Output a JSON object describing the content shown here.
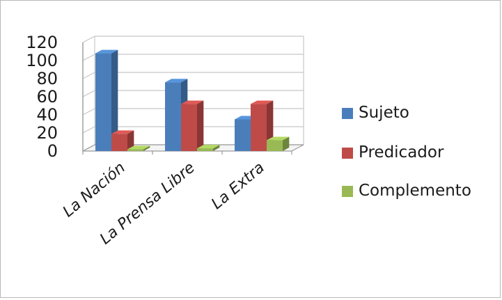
{
  "chart_data": {
    "type": "bar",
    "title": "",
    "xlabel": "",
    "ylabel": "",
    "categories": [
      "La Nación",
      "La Prensa Libre",
      "La Extra"
    ],
    "series": [
      {
        "name": "Sujeto",
        "values": [
          108,
          76,
          35
        ],
        "color": "#4a7ebb"
      },
      {
        "name": "Predicador",
        "values": [
          19,
          52,
          52
        ],
        "color": "#be4b48"
      },
      {
        "name": "Complemento",
        "values": [
          2,
          3,
          12
        ],
        "color": "#98b954"
      }
    ],
    "yticks": [
      "0",
      "20",
      "40",
      "60",
      "80",
      "100",
      "120"
    ],
    "ylim": [
      0,
      120
    ],
    "grid": true,
    "legend": "right",
    "style": "3d-clustered-column"
  }
}
